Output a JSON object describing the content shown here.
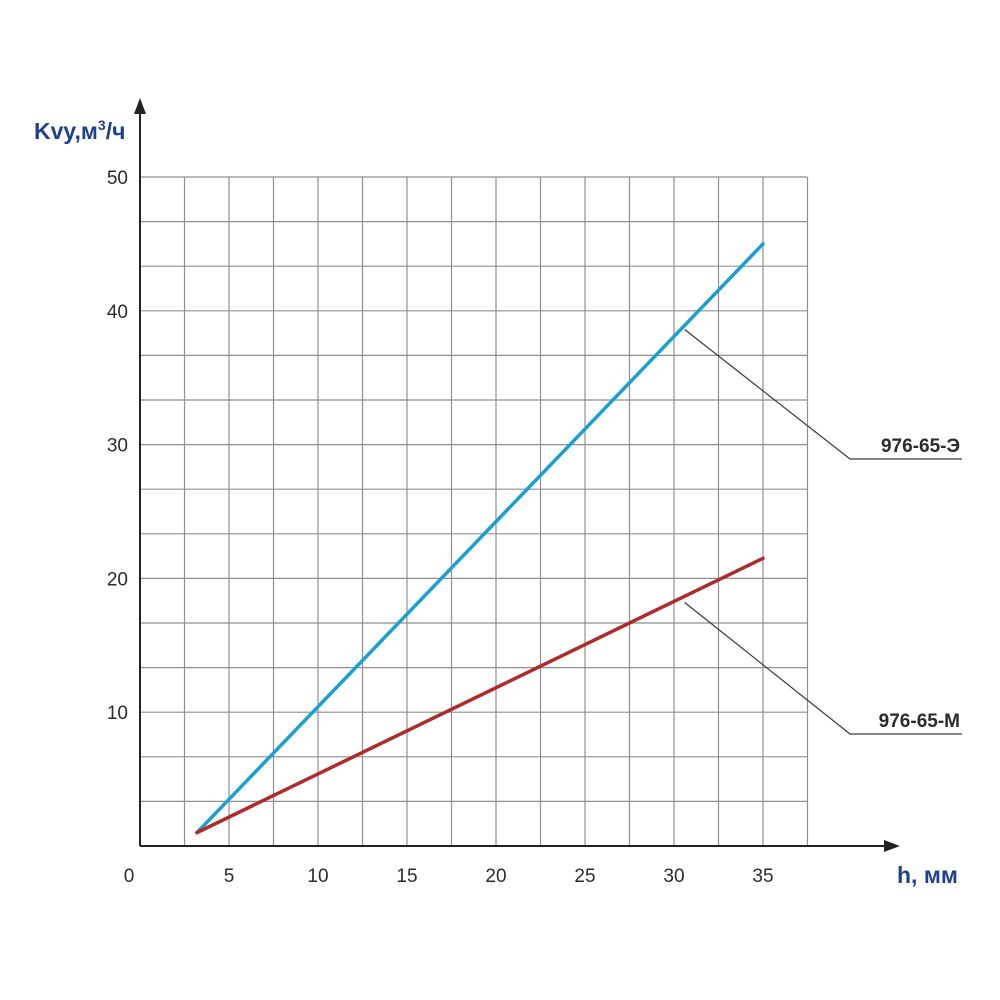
{
  "chart_data": {
    "type": "line",
    "ylabel_main": "Kvy,м",
    "ylabel_sup": "3",
    "ylabel_tail": "/ч",
    "xlabel": "h, мм",
    "x_ticks": [
      "0",
      "5",
      "10",
      "15",
      "20",
      "25",
      "30",
      "35"
    ],
    "y_ticks": [
      "10",
      "20",
      "30",
      "40",
      "50"
    ],
    "xlim": [
      0,
      42
    ],
    "ylim": [
      0,
      50
    ],
    "grid": true,
    "series": [
      {
        "name": "976-65-Э",
        "color": "#1a9fd4",
        "x": [
          3.2,
          35
        ],
        "y": [
          1,
          45
        ]
      },
      {
        "name": "976-65-М",
        "color": "#b02a2a",
        "x": [
          3.2,
          35
        ],
        "y": [
          1,
          21.5
        ]
      }
    ]
  }
}
